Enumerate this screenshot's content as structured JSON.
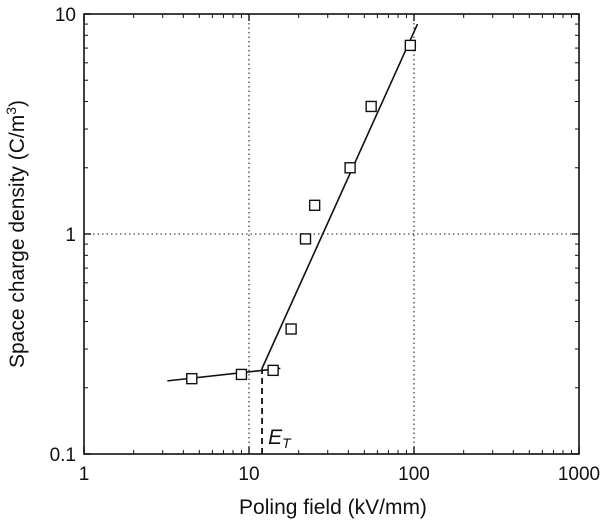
{
  "chart_data": {
    "type": "scatter",
    "xlabel": "Poling field  (kV/mm)",
    "ylabel": "Space charge density  (C/m³)",
    "xscale": "log",
    "yscale": "log",
    "xlim": [
      1,
      1000
    ],
    "ylim": [
      0.1,
      10
    ],
    "x_ticks": [
      1,
      10,
      100,
      1000
    ],
    "x_tick_labels": [
      "1",
      "10",
      "100",
      "1000"
    ],
    "y_ticks": [
      0.1,
      1,
      10
    ],
    "y_tick_labels": [
      "0.1",
      "1",
      "10"
    ],
    "grid": "dotted lines at x=10, x=100, y=1",
    "legend": "none",
    "series": [
      {
        "marker": "open-square",
        "x": [
          4.5,
          9,
          14,
          18,
          22,
          25,
          41,
          55,
          95
        ],
        "y": [
          0.22,
          0.23,
          0.24,
          0.37,
          0.95,
          1.35,
          2.0,
          3.8,
          7.2
        ]
      }
    ],
    "fit_lines": [
      {
        "x": [
          3.2,
          15.5
        ],
        "y": [
          0.215,
          0.245
        ]
      },
      {
        "x": [
          12,
          105
        ],
        "y": [
          0.245,
          9.0
        ]
      }
    ],
    "annotation": {
      "text": "E",
      "subscript": "T",
      "x": 12,
      "y_from": 0.1,
      "y_to": 0.245
    }
  }
}
